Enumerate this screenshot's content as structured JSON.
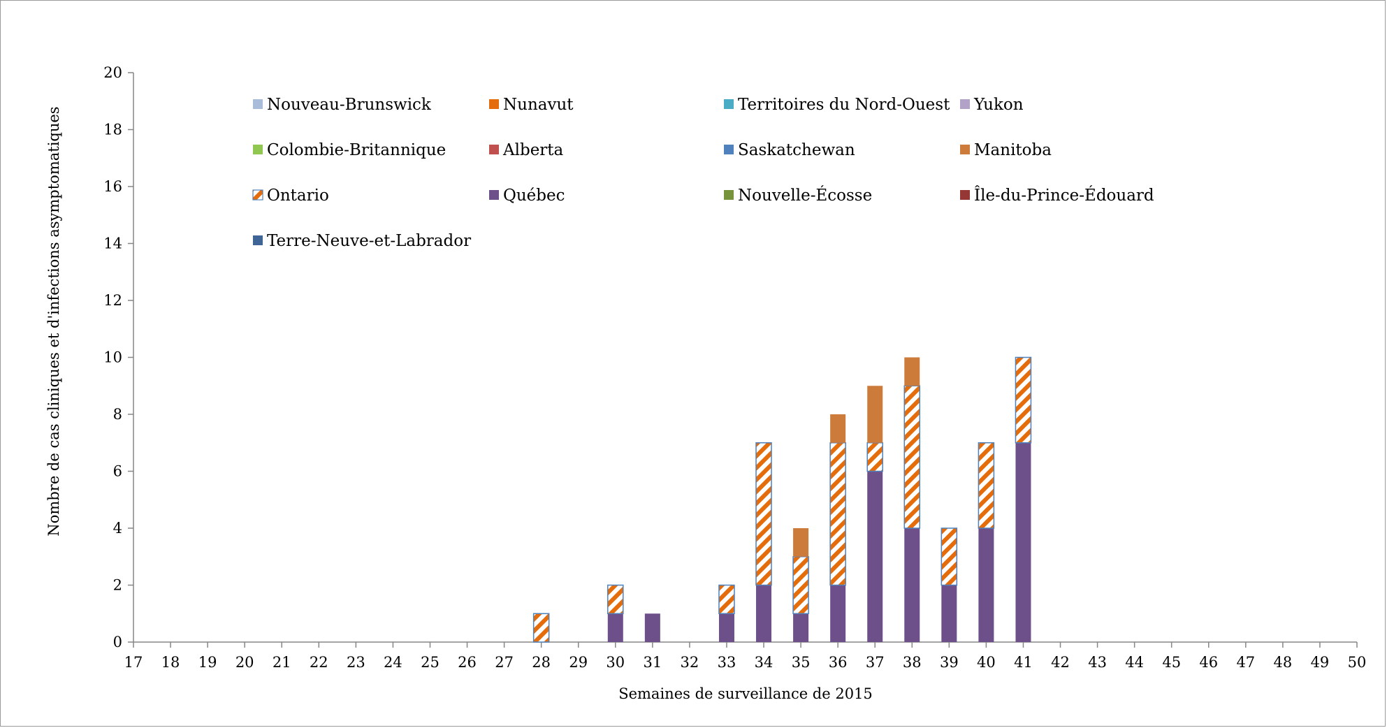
{
  "chart_data": {
    "type": "bar",
    "stacked": true,
    "xlabel": "Semaines de surveillance de 2015",
    "ylabel": "Nombre de cas cliniques et d'infections asymptomatiques",
    "ylim": [
      0,
      20
    ],
    "yticks": [
      "0",
      "2",
      "4",
      "6",
      "8",
      "10",
      "12",
      "14",
      "16",
      "18",
      "20"
    ],
    "categories": [
      "17",
      "18",
      "19",
      "20",
      "21",
      "22",
      "23",
      "24",
      "25",
      "26",
      "27",
      "28",
      "29",
      "30",
      "31",
      "32",
      "33",
      "34",
      "35",
      "36",
      "37",
      "38",
      "39",
      "40",
      "41",
      "42",
      "43",
      "44",
      "45",
      "46",
      "47",
      "48",
      "49",
      "50"
    ],
    "legend": [
      {
        "name": "Nouveau-Brunswick",
        "color": "#a9bcd9"
      },
      {
        "name": "Nunavut",
        "color": "#e46c0a"
      },
      {
        "name": "Territoires du Nord-Ouest",
        "color": "#4bacc6"
      },
      {
        "name": "Yukon",
        "color": "#b3a2c7"
      },
      {
        "name": "Colombie-Britannique",
        "color": "#8fc751"
      },
      {
        "name": "Alberta",
        "color": "#c0504d"
      },
      {
        "name": "Saskatchewan",
        "color": "#4f81bd"
      },
      {
        "name": "Manitoba",
        "color": "#cd7b3a"
      },
      {
        "name": "Ontario",
        "color": "#e46c0a",
        "pattern": "hatched"
      },
      {
        "name": "Québec",
        "color": "#6d4f8a"
      },
      {
        "name": "Nouvelle-Écosse",
        "color": "#77933c"
      },
      {
        "name": "Île-du-Prince-Édouard",
        "color": "#953735"
      },
      {
        "name": "Terre-Neuve-et-Labrador",
        "color": "#3e6596"
      }
    ],
    "series": [
      {
        "name": "Québec",
        "color": "#6d4f8a",
        "values": [
          0,
          0,
          0,
          0,
          0,
          0,
          0,
          0,
          0,
          0,
          0,
          0,
          0,
          1,
          1,
          0,
          1,
          2,
          1,
          2,
          6,
          4,
          2,
          4,
          7,
          0,
          0,
          0,
          0,
          0,
          0,
          0,
          0,
          0
        ]
      },
      {
        "name": "Ontario",
        "color": "#e46c0a",
        "pattern": "hatched",
        "values": [
          0,
          0,
          0,
          0,
          0,
          0,
          0,
          0,
          0,
          0,
          0,
          1,
          0,
          1,
          0,
          0,
          1,
          5,
          2,
          5,
          1,
          5,
          2,
          3,
          3,
          0,
          0,
          0,
          0,
          0,
          0,
          0,
          0,
          0
        ]
      },
      {
        "name": "Manitoba",
        "color": "#cd7b3a",
        "values": [
          0,
          0,
          0,
          0,
          0,
          0,
          0,
          0,
          0,
          0,
          0,
          0,
          0,
          0,
          0,
          0,
          0,
          0,
          1,
          1,
          2,
          1,
          0,
          0,
          0,
          0,
          0,
          0,
          0,
          0,
          0,
          0,
          0,
          0
        ]
      }
    ],
    "grid": false,
    "legend_position": "top"
  }
}
